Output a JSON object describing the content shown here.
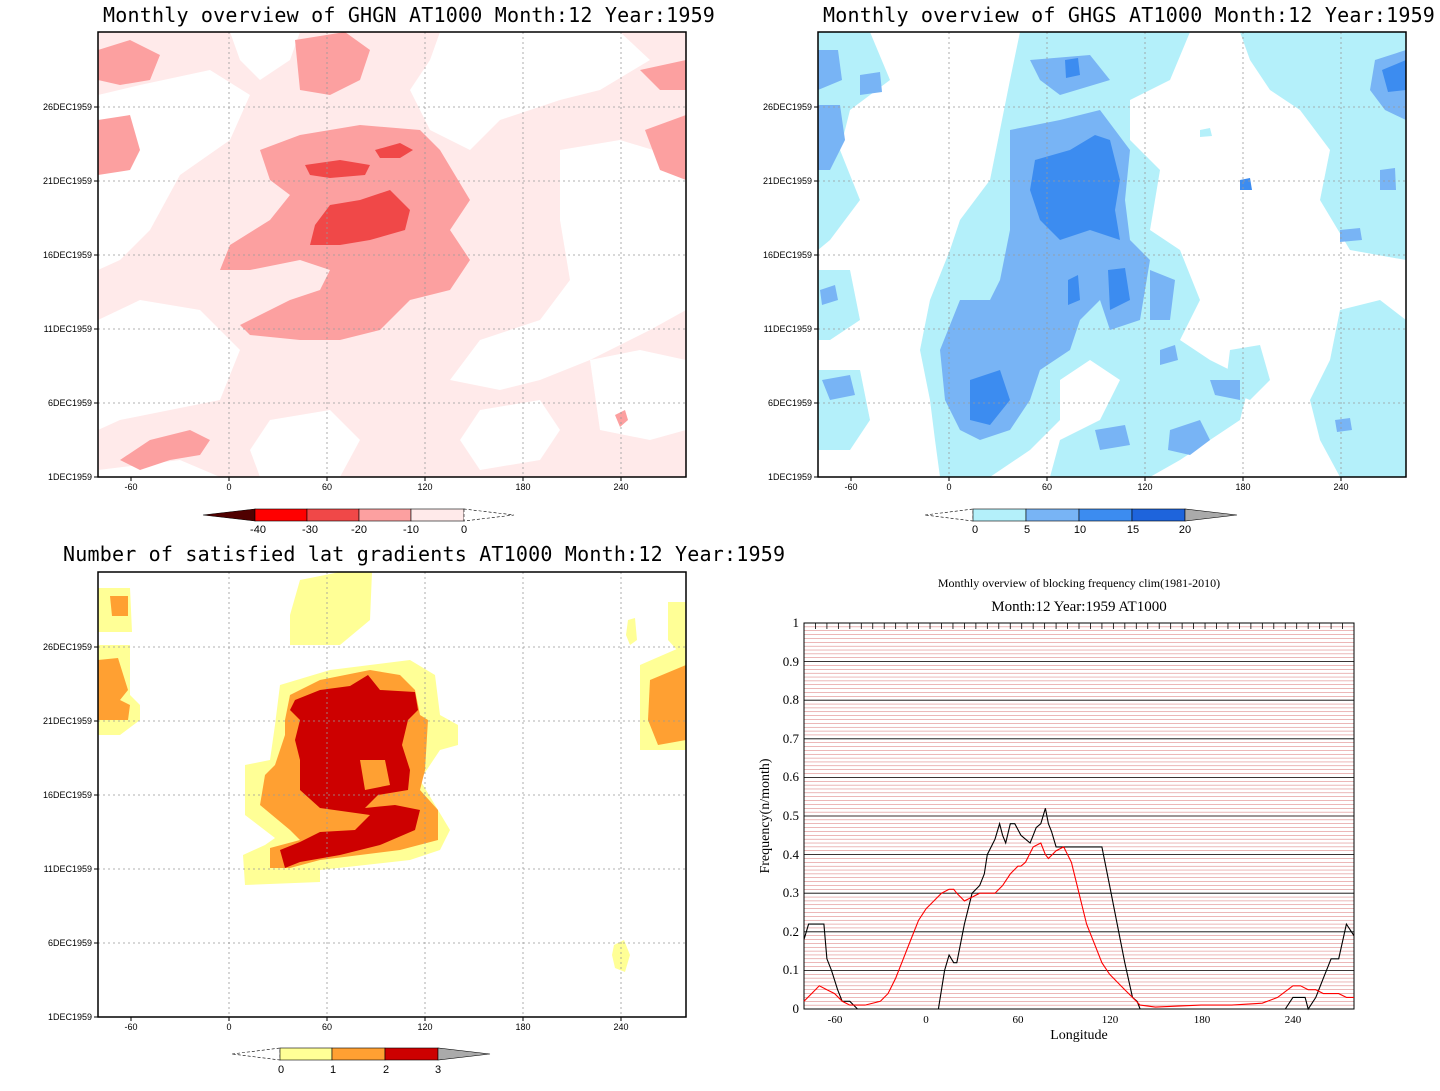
{
  "chart_data": [
    {
      "type": "heatmap",
      "title": "Monthly overview of GHGN AT1000 Month:12 Year:1959",
      "y_ticks": [
        "1DEC1959",
        "6DEC1959",
        "11DEC1959",
        "16DEC1959",
        "21DEC1959",
        "26DEC1959"
      ],
      "x_ticks": [
        "-60",
        "0",
        "60",
        "120",
        "180",
        "240"
      ],
      "xlim": [
        -80,
        280
      ],
      "colorbar": {
        "labels": [
          "-40",
          "-30",
          "-20",
          "-10",
          "0"
        ],
        "colors": [
          "#500000",
          "#ff0000",
          "#f04848",
          "#fca0a0",
          "#ffeaea"
        ]
      }
    },
    {
      "type": "heatmap",
      "title": "Monthly overview of GHGS AT1000 Month:12 Year:1959",
      "y_ticks": [
        "1DEC1959",
        "6DEC1959",
        "11DEC1959",
        "16DEC1959",
        "21DEC1959",
        "26DEC1959"
      ],
      "x_ticks": [
        "-60",
        "0",
        "60",
        "120",
        "180",
        "240"
      ],
      "xlim": [
        -80,
        280
      ],
      "colorbar": {
        "labels": [
          "0",
          "5",
          "10",
          "15",
          "20"
        ],
        "colors": [
          "#b4f0fa",
          "#78b4f5",
          "#3c8cf0",
          "#1e64dc",
          "#aaaaaa"
        ]
      }
    },
    {
      "type": "heatmap",
      "title": "Number of satisfied lat gradients AT1000 Month:12 Year:1959",
      "y_ticks": [
        "1DEC1959",
        "6DEC1959",
        "11DEC1959",
        "16DEC1959",
        "21DEC1959",
        "26DEC1959"
      ],
      "x_ticks": [
        "-60",
        "0",
        "60",
        "120",
        "180",
        "240"
      ],
      "xlim": [
        -80,
        280
      ],
      "colorbar": {
        "labels": [
          "0",
          "1",
          "2",
          "3"
        ],
        "colors": [
          "#ffff96",
          "#ffa032",
          "#cd0000",
          "#aaaaaa"
        ]
      }
    },
    {
      "type": "line",
      "title": "Monthly overview of blocking frequency clim(1981-2010)",
      "subtitle": "Month:12 Year:1959  AT1000",
      "xlabel": "Longitude",
      "ylabel": "Frequency(n/month)",
      "xlim": [
        -80,
        280
      ],
      "ylim": [
        0,
        1
      ],
      "x_ticks": [
        "-60",
        "0",
        "60",
        "120",
        "180",
        "240"
      ],
      "y_ticks": [
        "0",
        "0.1",
        "0.2",
        "0.3",
        "0.4",
        "0.5",
        "0.6",
        "0.7",
        "0.8",
        "0.9",
        "1"
      ],
      "series": [
        {
          "color": "#000000",
          "x": [
            -80,
            -77,
            -70,
            -67,
            -65,
            -62,
            -58,
            -55,
            -50,
            -45,
            -40,
            -30,
            -20,
            -10,
            0,
            8,
            10,
            12,
            15,
            18,
            20,
            25,
            30,
            35,
            38,
            40,
            45,
            48,
            50,
            52,
            55,
            58,
            62,
            65,
            68,
            70,
            72,
            75,
            78,
            80,
            82,
            85,
            88,
            90,
            95,
            100,
            110,
            115,
            120,
            125,
            130,
            135,
            138,
            140,
            150,
            200,
            230,
            235,
            240,
            245,
            248,
            250,
            255,
            260,
            265,
            268,
            270,
            275,
            280
          ],
          "y": [
            0.18,
            0.22,
            0.22,
            0.22,
            0.13,
            0.1,
            0.05,
            0.02,
            0.02,
            0.0,
            0.0,
            0.0,
            0.0,
            0.0,
            0.0,
            0.0,
            0.05,
            0.1,
            0.14,
            0.12,
            0.12,
            0.22,
            0.3,
            0.32,
            0.35,
            0.4,
            0.44,
            0.48,
            0.45,
            0.43,
            0.48,
            0.48,
            0.45,
            0.44,
            0.43,
            0.45,
            0.47,
            0.48,
            0.52,
            0.48,
            0.46,
            0.42,
            0.42,
            0.42,
            0.42,
            0.42,
            0.42,
            0.42,
            0.32,
            0.22,
            0.12,
            0.03,
            0.02,
            0.0,
            0.0,
            0.0,
            0.0,
            0.0,
            0.03,
            0.03,
            0.03,
            0.0,
            0.03,
            0.08,
            0.13,
            0.13,
            0.13,
            0.22,
            0.19
          ]
        },
        {
          "color": "#ff0000",
          "x": [
            -80,
            -75,
            -70,
            -65,
            -60,
            -55,
            -50,
            -40,
            -30,
            -25,
            -20,
            -15,
            -10,
            -5,
            0,
            5,
            10,
            15,
            18,
            20,
            25,
            30,
            35,
            40,
            45,
            50,
            55,
            60,
            62,
            65,
            70,
            75,
            78,
            80,
            85,
            90,
            95,
            100,
            105,
            110,
            115,
            120,
            125,
            130,
            135,
            140,
            150,
            180,
            200,
            220,
            230,
            240,
            245,
            250,
            255,
            260,
            265,
            270,
            275,
            280
          ],
          "y": [
            0.02,
            0.04,
            0.06,
            0.05,
            0.04,
            0.02,
            0.01,
            0.01,
            0.02,
            0.04,
            0.08,
            0.13,
            0.18,
            0.23,
            0.26,
            0.28,
            0.3,
            0.31,
            0.31,
            0.3,
            0.28,
            0.29,
            0.3,
            0.3,
            0.3,
            0.32,
            0.35,
            0.37,
            0.37,
            0.38,
            0.42,
            0.43,
            0.4,
            0.39,
            0.41,
            0.42,
            0.38,
            0.3,
            0.22,
            0.17,
            0.12,
            0.09,
            0.07,
            0.05,
            0.03,
            0.01,
            0.005,
            0.01,
            0.01,
            0.015,
            0.03,
            0.06,
            0.06,
            0.05,
            0.05,
            0.04,
            0.04,
            0.04,
            0.03,
            0.03
          ]
        }
      ]
    }
  ]
}
